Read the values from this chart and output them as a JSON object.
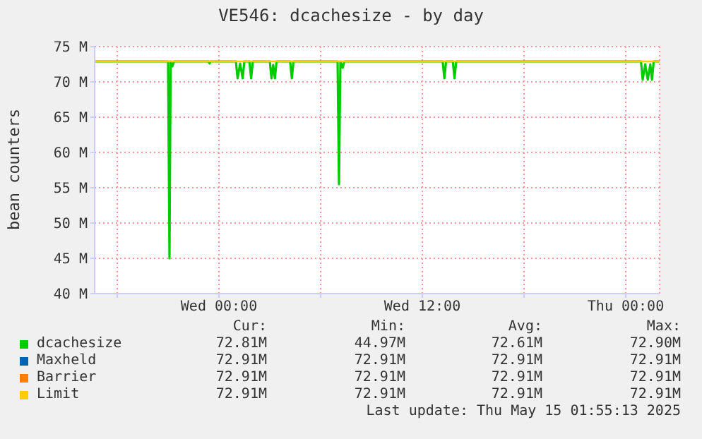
{
  "chart_data": {
    "type": "line",
    "title": "VE546: dcachesize - by day",
    "ylabel": "bean counters",
    "xlim": [
      "2025-05-13T16:40",
      "2025-05-15T02:00"
    ],
    "xticks": [
      {
        "value": "2025-05-13T18:00",
        "label": null
      },
      {
        "value": "2025-05-14T00:00",
        "label": "Wed 00:00"
      },
      {
        "value": "2025-05-14T06:00",
        "label": null
      },
      {
        "value": "2025-05-14T12:00",
        "label": "Wed 12:00"
      },
      {
        "value": "2025-05-14T18:00",
        "label": null
      },
      {
        "value": "2025-05-15T00:00",
        "label": "Thu 00:00"
      }
    ],
    "ylim": [
      40,
      75
    ],
    "yticks": [
      {
        "value": 40,
        "label": "40 M"
      },
      {
        "value": 45,
        "label": "45 M"
      },
      {
        "value": 50,
        "label": "50 M"
      },
      {
        "value": 55,
        "label": "55 M"
      },
      {
        "value": 60,
        "label": "60 M"
      },
      {
        "value": 65,
        "label": "65 M"
      },
      {
        "value": 70,
        "label": "70 M"
      },
      {
        "value": 75,
        "label": "75 M"
      }
    ],
    "grid": true,
    "legend": "bottom",
    "marker": "none",
    "line_style": "solid",
    "series": [
      {
        "name": "dcachesize",
        "color": "#00cc00",
        "x": [
          "2025-05-13T16:40",
          "2025-05-13T21:00",
          "2025-05-13T21:05",
          "2025-05-13T21:09",
          "2025-05-13T21:15",
          "2025-05-13T21:21",
          "2025-05-13T23:24",
          "2025-05-13T23:27",
          "2025-05-13T23:30",
          "2025-05-14T01:00",
          "2025-05-14T01:06",
          "2025-05-14T01:15",
          "2025-05-14T01:24",
          "2025-05-14T01:30",
          "2025-05-14T01:48",
          "2025-05-14T01:54",
          "2025-05-14T02:00",
          "2025-05-14T03:00",
          "2025-05-14T03:06",
          "2025-05-14T03:12",
          "2025-05-14T03:18",
          "2025-05-14T03:24",
          "2025-05-14T04:12",
          "2025-05-14T04:18",
          "2025-05-14T04:24",
          "2025-05-14T07:00",
          "2025-05-14T07:05",
          "2025-05-14T07:10",
          "2025-05-14T07:18",
          "2025-05-14T07:24",
          "2025-05-14T13:12",
          "2025-05-14T13:18",
          "2025-05-14T13:24",
          "2025-05-14T13:48",
          "2025-05-14T13:54",
          "2025-05-14T14:00",
          "2025-05-15T00:54",
          "2025-05-15T01:00",
          "2025-05-15T01:09",
          "2025-05-15T01:18",
          "2025-05-15T01:27",
          "2025-05-15T01:33",
          "2025-05-15T01:39",
          "2025-05-15T02:00"
        ],
        "values": [
          72.9,
          72.9,
          45.0,
          72.9,
          72.2,
          72.9,
          72.9,
          72.6,
          72.9,
          72.9,
          70.5,
          72.6,
          70.5,
          72.9,
          72.9,
          70.5,
          72.9,
          72.9,
          70.5,
          72.4,
          70.5,
          72.9,
          72.9,
          70.5,
          72.9,
          72.9,
          55.5,
          72.9,
          72.0,
          72.9,
          72.9,
          70.5,
          72.9,
          72.9,
          70.5,
          72.9,
          72.9,
          70.3,
          72.5,
          70.3,
          72.5,
          70.3,
          72.9,
          72.9
        ]
      },
      {
        "name": "Maxheld",
        "color": "#0066b3"
      },
      {
        "name": "Barrier",
        "color": "#ff8000"
      },
      {
        "name": "Limit",
        "color": "#ffcc00",
        "x": [
          "2025-05-13T16:40",
          "2025-05-15T02:00"
        ],
        "values": [
          72.9,
          72.9
        ]
      }
    ],
    "annotations": [
      "Cur:",
      "Min:",
      "Avg:",
      "Max:",
      "72.81M",
      "44.97M",
      "72.61M",
      "72.90M",
      "72.91M",
      "72.91M",
      "72.91M",
      "72.91M",
      "72.91M",
      "72.91M",
      "72.91M",
      "72.91M",
      "72.91M",
      "72.91M",
      "72.91M",
      "72.91M",
      "Last update: Thu May 15 01:55:13 2025"
    ]
  }
}
